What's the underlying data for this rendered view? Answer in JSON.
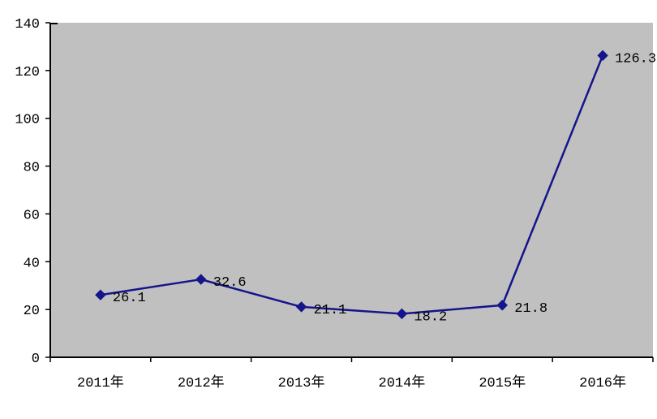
{
  "chart_data": {
    "type": "line",
    "title": "",
    "xlabel": "",
    "ylabel": "",
    "categories": [
      "2011年",
      "2012年",
      "2013年",
      "2014年",
      "2015年",
      "2016年"
    ],
    "series": [
      {
        "name": "",
        "values": [
          26.1,
          32.6,
          21.1,
          18.2,
          21.8,
          126.3
        ],
        "data_labels": [
          "26.1",
          "32.6",
          "21.1",
          "18.2",
          "21.8",
          "126.3"
        ]
      }
    ],
    "ylim": [
      0,
      140
    ],
    "y_ticks": [
      0,
      20,
      40,
      60,
      80,
      100,
      120,
      140
    ],
    "grid": false,
    "legend_position": "none",
    "marker": "diamond",
    "colors": {
      "line": "#14148c",
      "marker": "#14148c",
      "plot_background": "#c0c0c0",
      "axis": "#000000",
      "text": "#000000",
      "page_background": "#ffffff"
    }
  }
}
